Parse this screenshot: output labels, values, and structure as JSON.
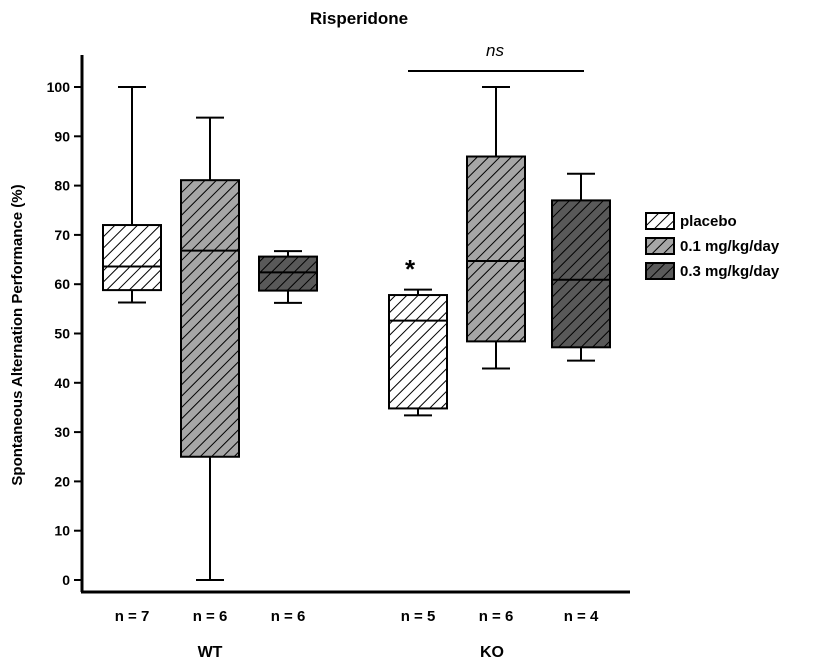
{
  "chart_data": {
    "type": "box",
    "title": "Risperidone",
    "ylabel": "Spontaneous Alternation Performance (%)",
    "ylim": [
      0,
      100
    ],
    "yticks": [
      0,
      10,
      20,
      30,
      40,
      50,
      60,
      70,
      80,
      90,
      100
    ],
    "groups": [
      "WT",
      "KO"
    ],
    "series": [
      {
        "name": "placebo",
        "fill": "#ffffff"
      },
      {
        "name": "0.1 mg/kg/day",
        "fill": "#a6a6a6"
      },
      {
        "name": "0.3 mg/kg/day",
        "fill": "#595959"
      }
    ],
    "boxes": [
      {
        "group": "WT",
        "series": "placebo",
        "n_label": "n = 7",
        "min": 56.3,
        "q1": 58.8,
        "median": 63.6,
        "q3": 72.0,
        "max": 100
      },
      {
        "group": "WT",
        "series": "0.1 mg/kg/day",
        "n_label": "n = 6",
        "min": 0,
        "q1": 25.0,
        "median": 66.8,
        "q3": 81.1,
        "max": 93.8
      },
      {
        "group": "WT",
        "series": "0.3 mg/kg/day",
        "n_label": "n = 6",
        "min": 56.2,
        "q1": 58.7,
        "median": 62.4,
        "q3": 65.6,
        "max": 66.7
      },
      {
        "group": "KO",
        "series": "placebo",
        "n_label": "n = 5",
        "min": 33.4,
        "q1": 34.8,
        "median": 52.6,
        "q3": 57.8,
        "max": 58.9
      },
      {
        "group": "KO",
        "series": "0.1 mg/kg/day",
        "n_label": "n = 6",
        "min": 42.9,
        "q1": 48.4,
        "median": 64.7,
        "q3": 85.9,
        "max": 100
      },
      {
        "group": "KO",
        "series": "0.3 mg/kg/day",
        "n_label": "n = 4",
        "min": 44.5,
        "q1": 47.2,
        "median": 60.9,
        "q3": 77.0,
        "max": 82.4
      }
    ],
    "annotations": {
      "asterisk": "*",
      "ns_label": "ns"
    },
    "legend_position": "right"
  }
}
